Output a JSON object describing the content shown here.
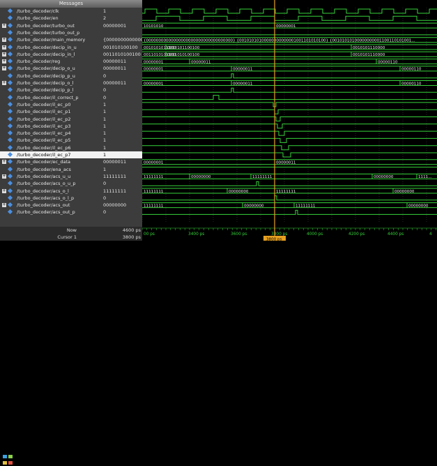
{
  "panel": {
    "messages_label": "Messages"
  },
  "signals": [
    {
      "name": "/turbo_decoder/clk",
      "value": "1",
      "expand": false
    },
    {
      "name": "/turbo_decoder/en",
      "value": "2",
      "expand": false
    },
    {
      "name": "/turbo_decoder/turbo_out",
      "value": "00000001",
      "expand": true
    },
    {
      "name": "/turbo_decoder/turbo_out_p",
      "value": "",
      "expand": false
    },
    {
      "name": "/turbo_decoder/main_memory",
      "value": "{0000000000000000000",
      "expand": true
    },
    {
      "name": "/turbo_decoder/decip_in_u",
      "value": "001010100100",
      "expand": true
    },
    {
      "name": "/turbo_decoder/decip_in_l",
      "value": "0011010100100",
      "expand": true
    },
    {
      "name": "/turbo_decoder/reg",
      "value": "00000011",
      "expand": true
    },
    {
      "name": "/turbo_decoder/decip_o_u",
      "value": "00000011",
      "expand": true
    },
    {
      "name": "/turbo_decoder/decip_p_u",
      "value": "0",
      "expand": false
    },
    {
      "name": "/turbo_decoder/decip_o_l",
      "value": "00000011",
      "expand": true
    },
    {
      "name": "/turbo_decoder/decip_p_l",
      "value": "0",
      "expand": false
    },
    {
      "name": "/turbo_decoder/il_correct_p",
      "value": "0",
      "expand": false
    },
    {
      "name": "/turbo_decoder/il_ec_p0",
      "value": "1",
      "expand": false
    },
    {
      "name": "/turbo_decoder/il_ec_p1",
      "value": "1",
      "expand": false
    },
    {
      "name": "/turbo_decoder/il_ec_p2",
      "value": "1",
      "expand": false
    },
    {
      "name": "/turbo_decoder/il_ec_p3",
      "value": "1",
      "expand": false
    },
    {
      "name": "/turbo_decoder/il_ec_p4",
      "value": "1",
      "expand": false
    },
    {
      "name": "/turbo_decoder/il_ec_p5",
      "value": "1",
      "expand": false
    },
    {
      "name": "/turbo_decoder/il_ec_p6",
      "value": "1",
      "expand": false
    },
    {
      "name": "/turbo_decoder/il_ec_p7",
      "value": "1",
      "expand": false,
      "selected": true
    },
    {
      "name": "/turbo_decoder/ec_data",
      "value": "00000011",
      "expand": true
    },
    {
      "name": "/turbo_decoder/ena_acs",
      "value": "1",
      "expand": false
    },
    {
      "name": "/turbo_decoder/acs_u_u",
      "value": "11111111",
      "expand": true
    },
    {
      "name": "/turbo_decoder/acs_o_u_p",
      "value": "0",
      "expand": false
    },
    {
      "name": "/turbo_decoder/acs_o_l",
      "value": "11111111",
      "expand": true
    },
    {
      "name": "/turbo_decoder/acs_o_l_p",
      "value": "0",
      "expand": false
    },
    {
      "name": "/turbo_decoder/acs_out",
      "value": "00000000",
      "expand": true
    },
    {
      "name": "/turbo_decoder/acs_out_p",
      "value": "0",
      "expand": false
    }
  ],
  "bus_labels": {
    "turbo_out": [
      "10101010",
      "00000001"
    ],
    "main_memory": [
      "{00000000000000000000000000000000000} {00101010100000000000001001101010100} {00101010100000000001100110101001..."
    ],
    "decip_in_u": [
      "0010101011100",
      "0010101100100",
      "0010101110000"
    ],
    "decip_in_l": [
      "0011010101100",
      "0011010100100",
      "0010101110000"
    ],
    "reg": [
      "00000001",
      "00000011",
      "00000110"
    ],
    "decip_o_u": [
      "00000001",
      "00000011",
      "00000110"
    ],
    "decip_o_l": [
      "00000001",
      "00000011",
      "00000110"
    ],
    "ec_data": [
      "00000001",
      "00000011"
    ],
    "acs_u_u": [
      "11111111",
      "00000000",
      "11111111",
      "00000000",
      "1111..."
    ],
    "acs_o_l": [
      "11111111",
      "00000000",
      "11111111",
      "00000000"
    ],
    "acs_out": [
      "11111111",
      "00000000",
      "11111111",
      "00000000"
    ]
  },
  "footer": {
    "now_label": "Now",
    "now_value": "4600 ps",
    "cursor_label": "Cursor 1",
    "cursor_value": "3800 ps"
  },
  "timeline": {
    "ticks": [
      "00 ps",
      "3400 ps",
      "3600 ps",
      "3800 ps",
      "4000 ps",
      "4200 ps",
      "4400 ps",
      "4"
    ],
    "cursor_label": "3800 ps"
  },
  "colors": {
    "wave": "#36d43a",
    "cursor": "#e6a020",
    "grid": "#4a4a4a",
    "panel": "#3c3c3c",
    "signal_icon": "#4b8fe0"
  }
}
